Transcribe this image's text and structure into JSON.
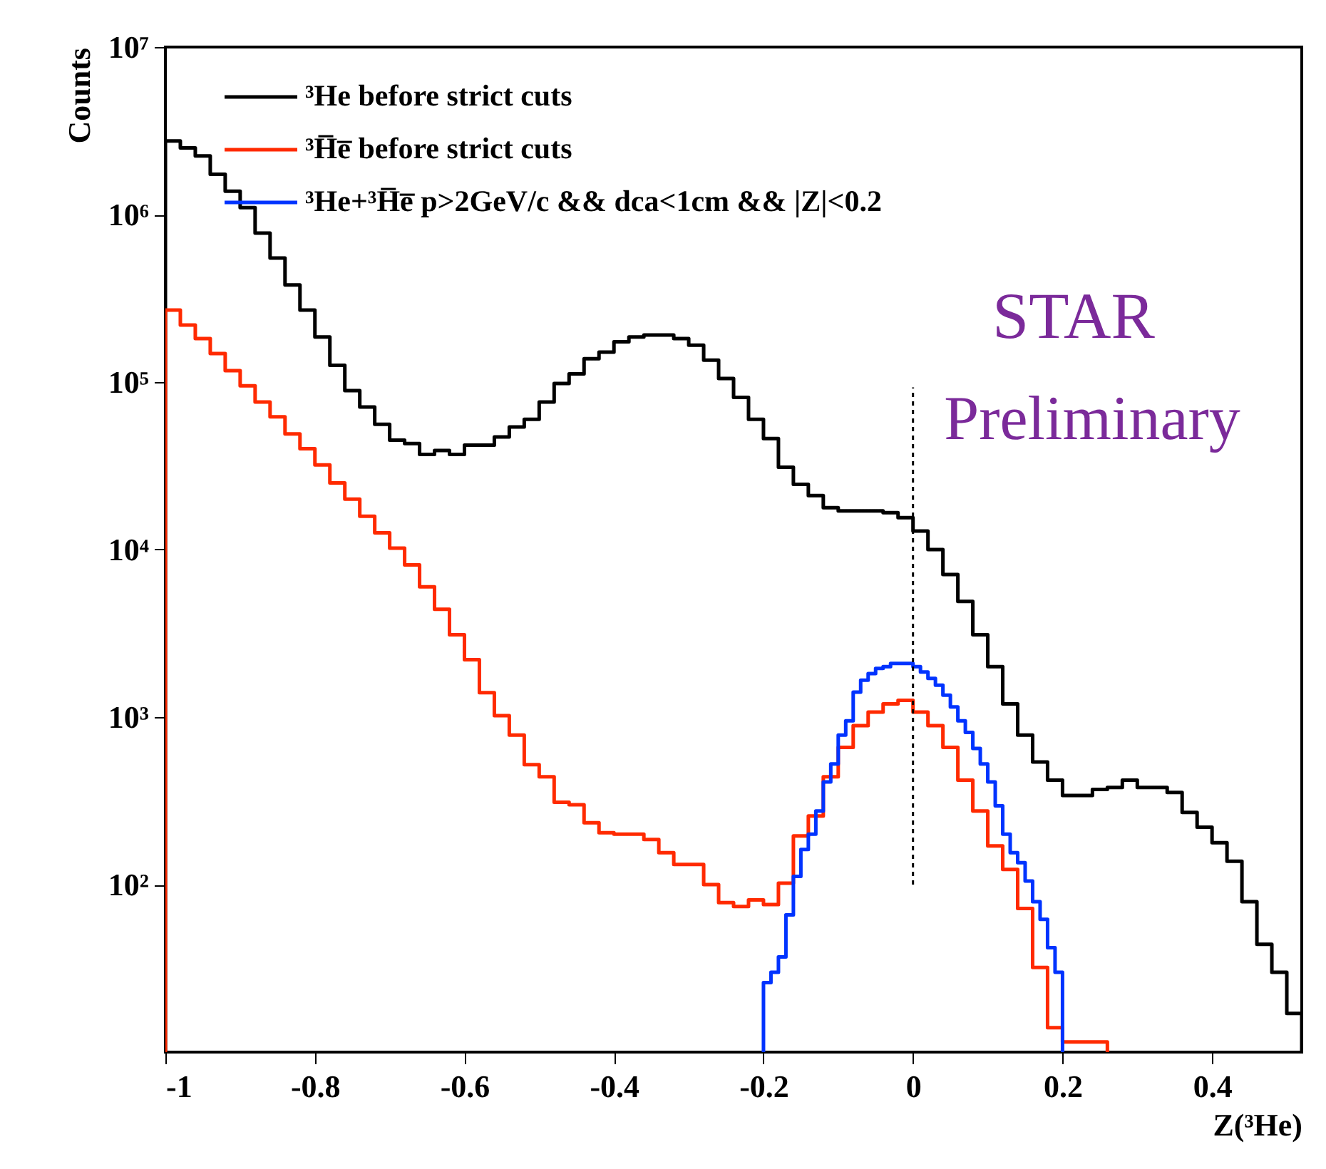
{
  "chart_data": {
    "type": "histogram",
    "xlabel": "Z(³He)",
    "ylabel": "Counts",
    "xlim": [
      -1,
      0.52
    ],
    "ylim": [
      10,
      10000000
    ],
    "log": true,
    "grid": false,
    "legend": "top",
    "xticks": [
      -1,
      -0.8,
      -0.6,
      -0.4,
      -0.2,
      0,
      0.2,
      0.4
    ],
    "yticks": [
      {
        "value": 100,
        "label": "10²"
      },
      {
        "value": 1000,
        "label": "10³"
      },
      {
        "value": 10000,
        "label": "10⁴"
      },
      {
        "value": 100000,
        "label": "10⁵"
      },
      {
        "value": 1000000,
        "label": "10⁶"
      },
      {
        "value": 10000000,
        "label": "10⁷"
      }
    ],
    "annotations": [
      "STAR",
      "Preliminary"
    ],
    "series": [
      {
        "name": "³He before strict cuts",
        "color": "#000000",
        "bins": [
          -1,
          -0.98,
          -0.96,
          -0.94,
          -0.92,
          -0.9,
          -0.88,
          -0.86,
          -0.84,
          -0.82,
          -0.8,
          -0.78,
          -0.76,
          -0.74,
          -0.72,
          -0.7,
          -0.68,
          -0.66,
          -0.64,
          -0.62,
          -0.6,
          -0.58,
          -0.56,
          -0.54,
          -0.52,
          -0.5,
          -0.48,
          -0.46,
          -0.44,
          -0.42,
          -0.4,
          -0.38,
          -0.36,
          -0.34,
          -0.32,
          -0.3,
          -0.28,
          -0.26,
          -0.24,
          -0.22,
          -0.2,
          -0.18,
          -0.16,
          -0.14,
          -0.12,
          -0.1,
          -0.08,
          -0.06,
          -0.04,
          -0.02,
          0,
          0.02,
          0.04,
          0.06,
          0.08,
          0.1,
          0.12,
          0.14,
          0.16,
          0.18,
          0.2,
          0.22,
          0.24,
          0.26,
          0.28,
          0.3,
          0.32,
          0.34,
          0.36,
          0.38,
          0.4,
          0.42,
          0.44,
          0.46,
          0.48,
          0.5,
          0.52
        ],
        "values": [
          2750000,
          2500000,
          2240000,
          1740000,
          1380000,
          1100000,
          776000,
          550000,
          380000,
          269000,
          186000,
          126000,
          89000,
          71000,
          56000,
          45000,
          43000,
          37000,
          39000,
          37000,
          42000,
          42000,
          47000,
          54000,
          60000,
          76000,
          98000,
          112000,
          138000,
          151000,
          174000,
          186000,
          191000,
          191000,
          182000,
          166000,
          135000,
          105000,
          81000,
          60000,
          46000,
          31000,
          24500,
          21000,
          17800,
          17000,
          17000,
          17000,
          16600,
          15500,
          12900,
          10000,
          7100,
          4900,
          3100,
          2000,
          1200,
          780,
          540,
          420,
          340,
          340,
          370,
          380,
          420,
          380,
          380,
          355,
          270,
          220,
          178,
          138,
          79,
          44,
          30,
          17
        ]
      },
      {
        "name": "³H̅e̅ before strict cuts",
        "color": "#ff2a00",
        "bins": [
          -1,
          -0.98,
          -0.96,
          -0.94,
          -0.92,
          -0.9,
          -0.88,
          -0.86,
          -0.84,
          -0.82,
          -0.8,
          -0.78,
          -0.76,
          -0.74,
          -0.72,
          -0.7,
          -0.68,
          -0.66,
          -0.64,
          -0.62,
          -0.6,
          -0.58,
          -0.56,
          -0.54,
          -0.52,
          -0.5,
          -0.48,
          -0.46,
          -0.44,
          -0.42,
          -0.4,
          -0.38,
          -0.36,
          -0.34,
          -0.32,
          -0.3,
          -0.28,
          -0.26,
          -0.24,
          -0.22,
          -0.2,
          -0.18,
          -0.16,
          -0.14,
          -0.12,
          -0.1,
          -0.08,
          -0.06,
          -0.04,
          -0.02,
          0,
          0.02,
          0.04,
          0.06,
          0.08,
          0.1,
          0.12,
          0.14,
          0.16,
          0.18,
          0.2,
          0.22,
          0.24,
          0.26
        ],
        "values": [
          269000,
          219000,
          182000,
          148000,
          117000,
          95000,
          76000,
          62000,
          49000,
          40000,
          32000,
          25000,
          20000,
          15800,
          12600,
          10200,
          8100,
          6000,
          4400,
          3100,
          2200,
          1400,
          1020,
          780,
          520,
          440,
          310,
          300,
          234,
          204,
          200,
          200,
          186,
          155,
          132,
          132,
          100,
          78,
          74,
          81,
          76,
          102,
          195,
          257,
          440,
          660,
          890,
          1070,
          1200,
          1260,
          1070,
          890,
          660,
          420,
          275,
          170,
          123,
          72,
          32,
          14,
          11.5,
          11.5,
          11.5
        ]
      },
      {
        "name": "³He+³H̅e̅ p>2GeV/c && dca<1cm && |Z|<0.2",
        "color": "#0033ff",
        "bins": [
          -0.2,
          -0.19,
          -0.18,
          -0.17,
          -0.16,
          -0.15,
          -0.14,
          -0.13,
          -0.12,
          -0.11,
          -0.1,
          -0.09,
          -0.08,
          -0.07,
          -0.06,
          -0.05,
          -0.04,
          -0.03,
          -0.02,
          -0.01,
          0,
          0.01,
          0.02,
          0.03,
          0.04,
          0.05,
          0.06,
          0.07,
          0.08,
          0.09,
          0.1,
          0.11,
          0.12,
          0.13,
          0.14,
          0.15,
          0.16,
          0.17,
          0.18,
          0.19,
          0.2
        ],
        "values": [
          26,
          30,
          37,
          66,
          112,
          162,
          200,
          275,
          410,
          525,
          780,
          950,
          1410,
          1660,
          1820,
          1950,
          2000,
          2090,
          2090,
          2090,
          2000,
          1860,
          1700,
          1550,
          1350,
          1150,
          950,
          810,
          650,
          525,
          410,
          295,
          200,
          155,
          135,
          105,
          79,
          62,
          42,
          30
        ]
      },
      {
        "type": "line",
        "color": "#000000",
        "line_style": "dotted",
        "x": [
          0,
          0
        ],
        "values": [
          100,
          93000
        ]
      }
    ]
  }
}
